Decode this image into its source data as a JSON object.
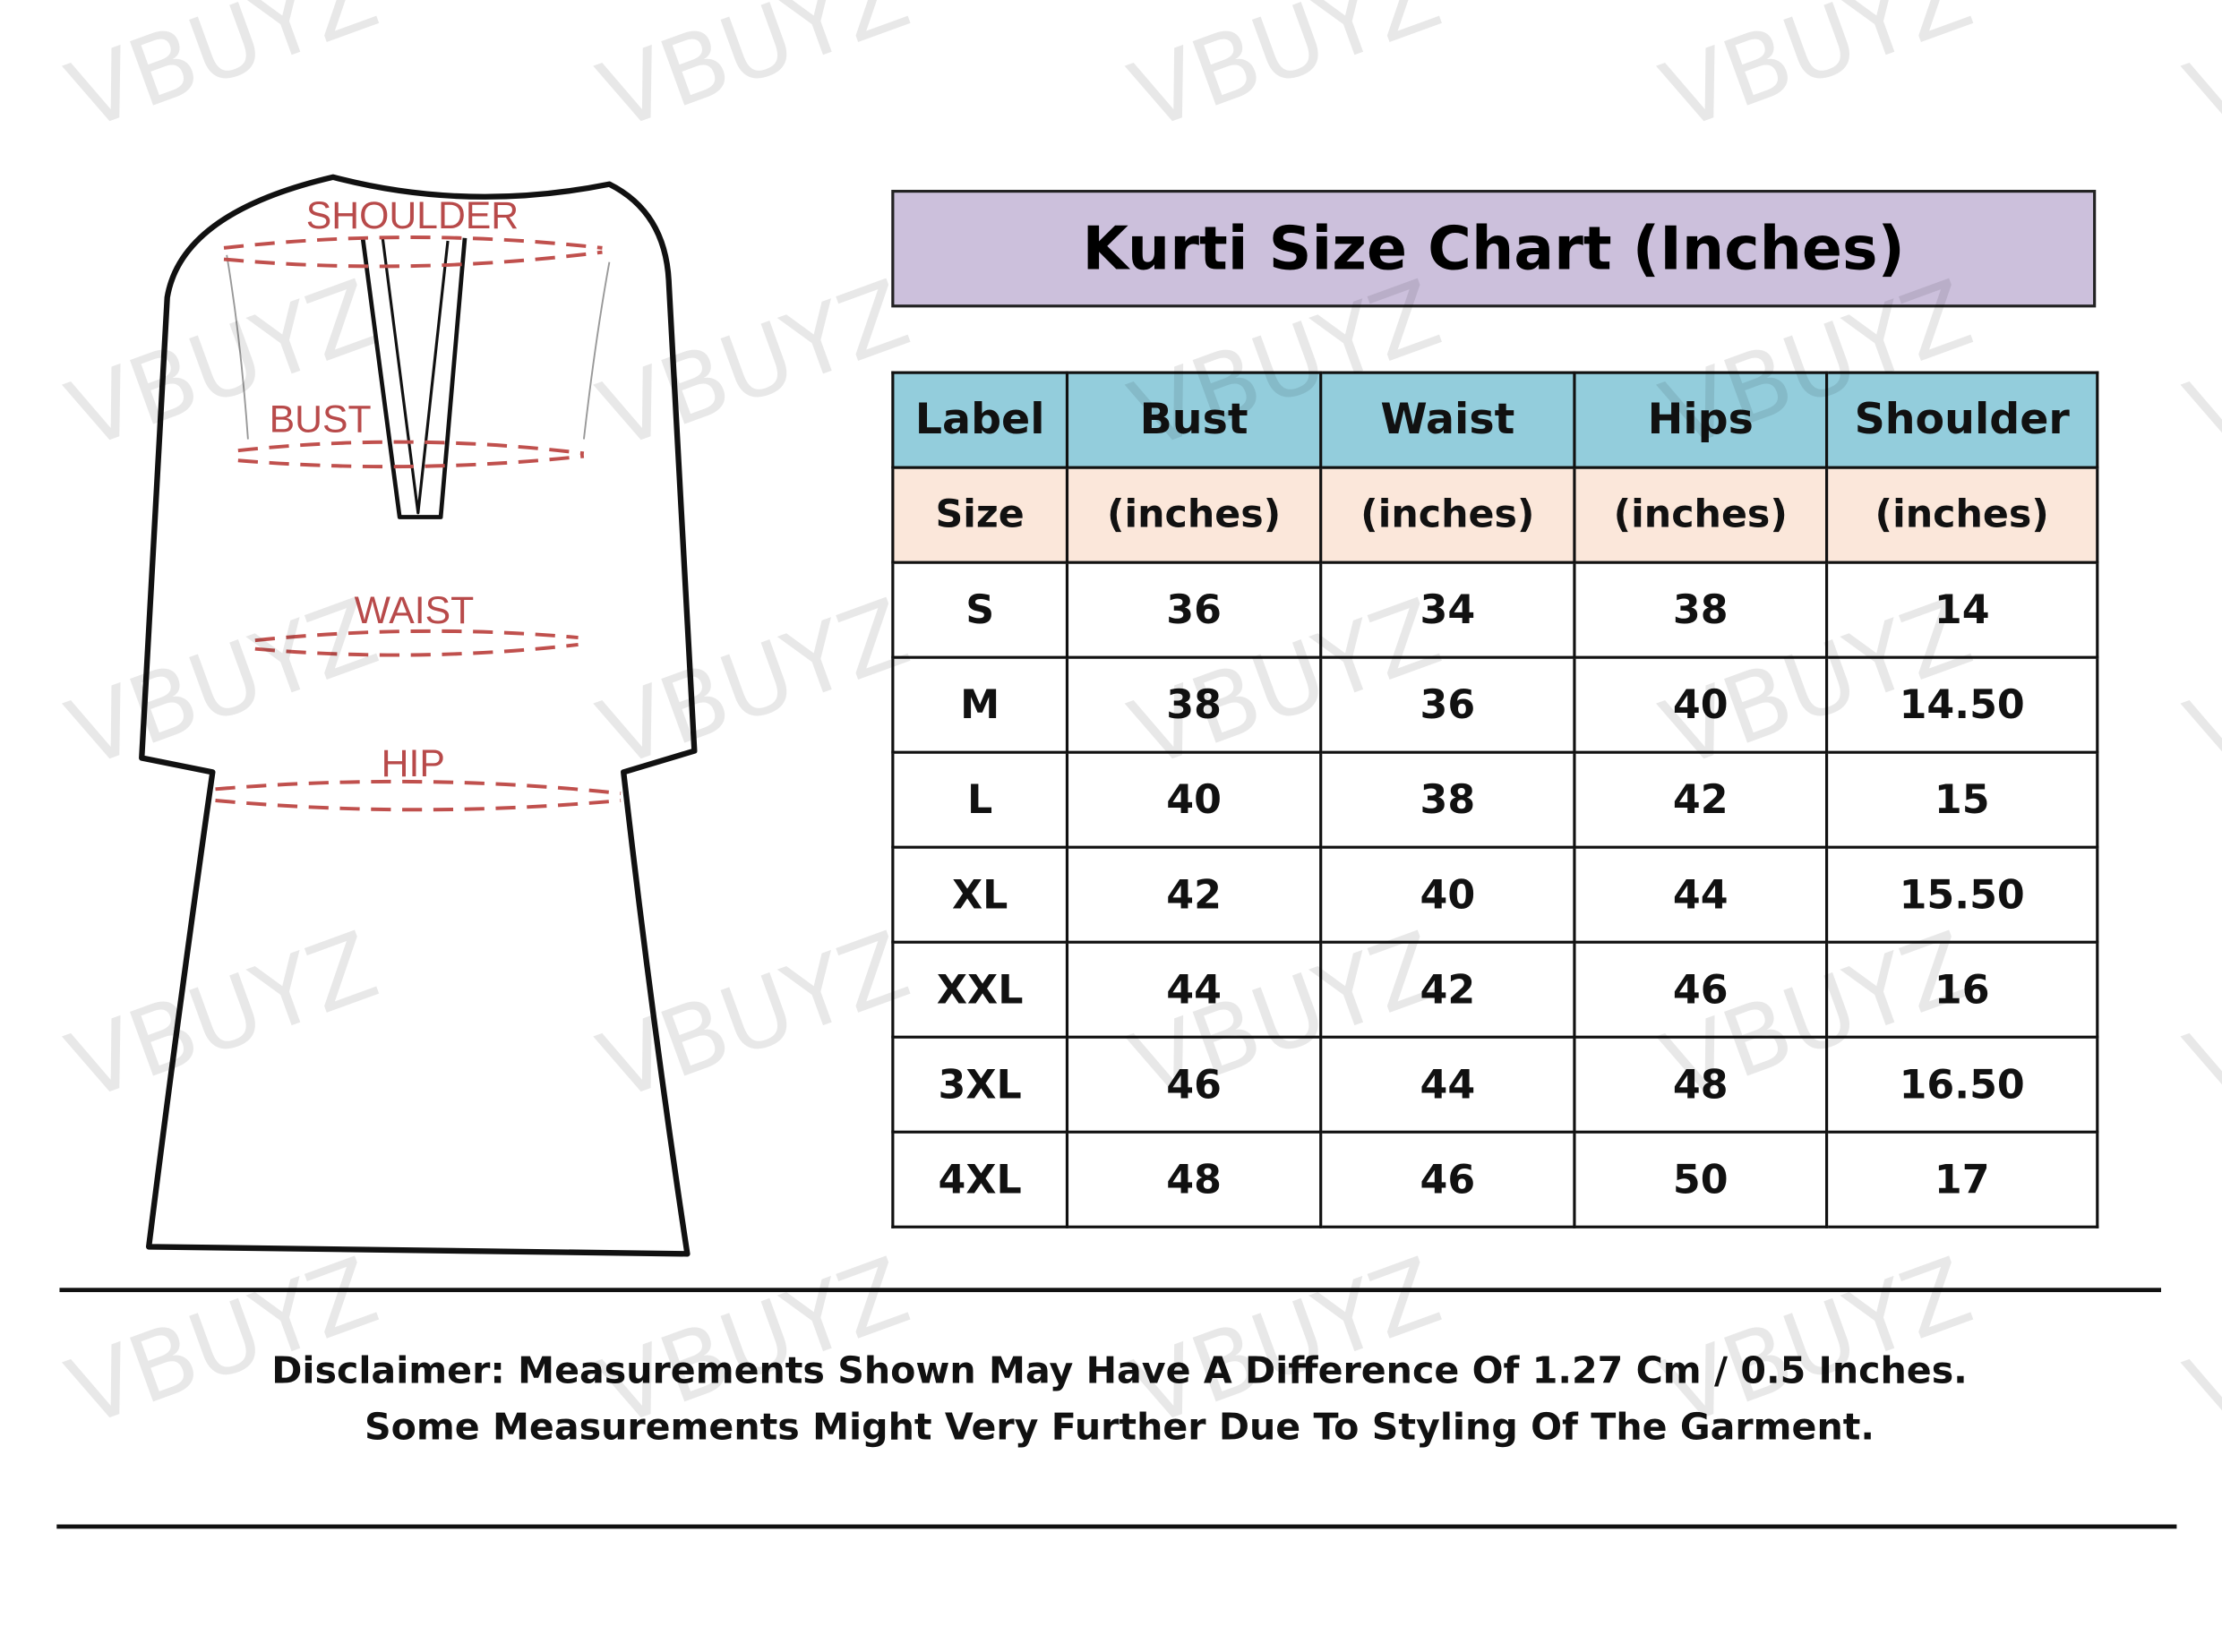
{
  "watermark": "VBUYZ",
  "diagram": {
    "labels": {
      "shoulder": "SHOULDER",
      "bust": "BUST",
      "waist": "WAIST",
      "hip": "HIP"
    },
    "measure_color": "#c0504d"
  },
  "title": "Kurti Size Chart (Inches)",
  "colors": {
    "title_bg": "#ccc0dc",
    "header_bg": "#93cddc",
    "subheader_bg": "#fbe7da"
  },
  "table": {
    "headers": [
      "Label",
      "Bust",
      "Waist",
      "Hips",
      "Shoulder"
    ],
    "subheaders": [
      "Size",
      "(inches)",
      "(inches)",
      "(inches)",
      "(inches)"
    ],
    "rows": [
      [
        "S",
        "36",
        "34",
        "38",
        "14"
      ],
      [
        "M",
        "38",
        "36",
        "40",
        "14.50"
      ],
      [
        "L",
        "40",
        "38",
        "42",
        "15"
      ],
      [
        "XL",
        "42",
        "40",
        "44",
        "15.50"
      ],
      [
        "XXL",
        "44",
        "42",
        "46",
        "16"
      ],
      [
        "3XL",
        "46",
        "44",
        "48",
        "16.50"
      ],
      [
        "4XL",
        "48",
        "46",
        "50",
        "17"
      ]
    ]
  },
  "disclaimer": {
    "line1": "Disclaimer: Measurements Shown May Have A Difference Of 1.27 Cm / 0.5 Inches.",
    "line2": "Some Measurements Might Very Further Due To Styling Of The Garment."
  }
}
